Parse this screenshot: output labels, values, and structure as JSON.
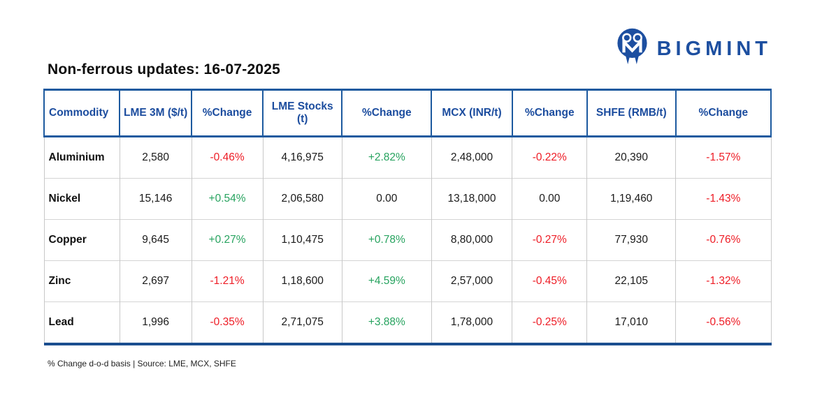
{
  "logo": {
    "brand_name": "BIGMINT",
    "icon": "bigmint-monogram-circle",
    "brand_color": "#1d4fa0"
  },
  "page_title": "Non-ferrous updates: 16-07-2025",
  "footnote": "% Change d-o-d basis | Source: LME, MCX, SHFE",
  "colors": {
    "header_text": "#1b4c9e",
    "border_blue": "#1d5a9f",
    "positive": "#27a35f",
    "negative": "#ee1c25",
    "neutral_text": "#1a1a1a"
  },
  "chart_data": {
    "type": "table",
    "title": "Non-ferrous updates: 16-07-2025",
    "columns": [
      "Commodity",
      "LME 3M ($/t)",
      "%Change",
      "LME Stocks (t)",
      "%Change",
      "MCX (INR/t)",
      "%Change",
      "SHFE (RMB/t)",
      "%Change"
    ],
    "rows": [
      {
        "cells": [
          "Aluminium",
          "2,580",
          "-0.46%",
          "4,16,975",
          "+2.82%",
          "2,48,000",
          "-0.22%",
          "20,390",
          "-1.57%"
        ],
        "tones": [
          null,
          null,
          "negative",
          null,
          "positive",
          null,
          "negative",
          null,
          "negative"
        ]
      },
      {
        "cells": [
          "Nickel",
          "15,146",
          "+0.54%",
          "2,06,580",
          "0.00",
          "13,18,000",
          "0.00",
          "1,19,460",
          "-1.43%"
        ],
        "tones": [
          null,
          null,
          "positive",
          null,
          null,
          null,
          null,
          null,
          "negative"
        ]
      },
      {
        "cells": [
          "Copper",
          "9,645",
          "+0.27%",
          "1,10,475",
          "+0.78%",
          "8,80,000",
          "-0.27%",
          "77,930",
          "-0.76%"
        ],
        "tones": [
          null,
          null,
          "positive",
          null,
          "positive",
          null,
          "negative",
          null,
          "negative"
        ]
      },
      {
        "cells": [
          "Zinc",
          "2,697",
          "-1.21%",
          "1,18,600",
          "+4.59%",
          "2,57,000",
          "-0.45%",
          "22,105",
          "-1.32%"
        ],
        "tones": [
          null,
          null,
          "negative",
          null,
          "positive",
          null,
          "negative",
          null,
          "negative"
        ]
      },
      {
        "cells": [
          "Lead",
          "1,996",
          "-0.35%",
          "2,71,075",
          "+3.88%",
          "1,78,000",
          "-0.25%",
          "17,010",
          "-0.56%"
        ],
        "tones": [
          null,
          null,
          "negative",
          null,
          "positive",
          null,
          "negative",
          null,
          "negative"
        ]
      }
    ],
    "footnote": "% Change d-o-d basis | Source: LME, MCX, SHFE"
  }
}
